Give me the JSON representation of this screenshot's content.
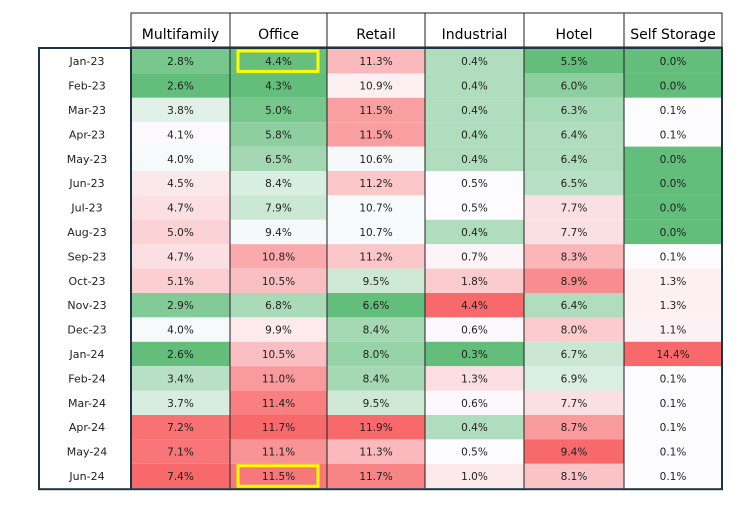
{
  "chart_data": {
    "type": "heatmap",
    "columns": [
      "Multifamily",
      "Office",
      "Retail",
      "Industrial",
      "Hotel",
      "Self Storage"
    ],
    "rows": [
      "Jan-23",
      "Feb-23",
      "Mar-23",
      "Apr-23",
      "May-23",
      "Jun-23",
      "Jul-23",
      "Aug-23",
      "Sep-23",
      "Oct-23",
      "Nov-23",
      "Dec-23",
      "Jan-24",
      "Feb-24",
      "Mar-24",
      "Apr-24",
      "May-24",
      "Jun-24"
    ],
    "values": [
      [
        2.8,
        4.4,
        11.3,
        0.4,
        5.5,
        0.0
      ],
      [
        2.6,
        4.3,
        10.9,
        0.4,
        6.0,
        0.0
      ],
      [
        3.8,
        5.0,
        11.5,
        0.4,
        6.3,
        0.1
      ],
      [
        4.1,
        5.8,
        11.5,
        0.4,
        6.4,
        0.1
      ],
      [
        4.0,
        6.5,
        10.6,
        0.4,
        6.4,
        0.0
      ],
      [
        4.5,
        8.4,
        11.2,
        0.5,
        6.5,
        0.0
      ],
      [
        4.7,
        7.9,
        10.7,
        0.5,
        7.7,
        0.0
      ],
      [
        5.0,
        9.4,
        10.7,
        0.4,
        7.7,
        0.0
      ],
      [
        4.7,
        10.8,
        11.2,
        0.7,
        8.3,
        0.1
      ],
      [
        5.1,
        10.5,
        9.5,
        1.8,
        8.9,
        1.3
      ],
      [
        2.9,
        6.8,
        6.6,
        4.4,
        6.4,
        1.3
      ],
      [
        4.0,
        9.9,
        8.4,
        0.6,
        8.0,
        1.1
      ],
      [
        2.6,
        10.5,
        8.0,
        0.3,
        6.7,
        14.4
      ],
      [
        3.4,
        11.0,
        8.4,
        1.3,
        6.9,
        0.1
      ],
      [
        3.7,
        11.4,
        9.5,
        0.6,
        7.7,
        0.1
      ],
      [
        7.2,
        11.7,
        11.9,
        0.4,
        8.7,
        0.1
      ],
      [
        7.1,
        11.1,
        11.3,
        0.5,
        9.4,
        0.1
      ],
      [
        7.4,
        11.5,
        11.7,
        1.0,
        8.1,
        0.1
      ]
    ],
    "value_suffix": "%",
    "color_scale": {
      "low": "#63be7b",
      "mid": "#fcfcff",
      "high": "#f8696b"
    },
    "highlighted_cells": [
      {
        "row": 0,
        "col": 1,
        "color": "#ffff00"
      },
      {
        "row": 17,
        "col": 1,
        "color": "#ffff00"
      }
    ],
    "title": "",
    "xlabel": "",
    "ylabel": ""
  }
}
